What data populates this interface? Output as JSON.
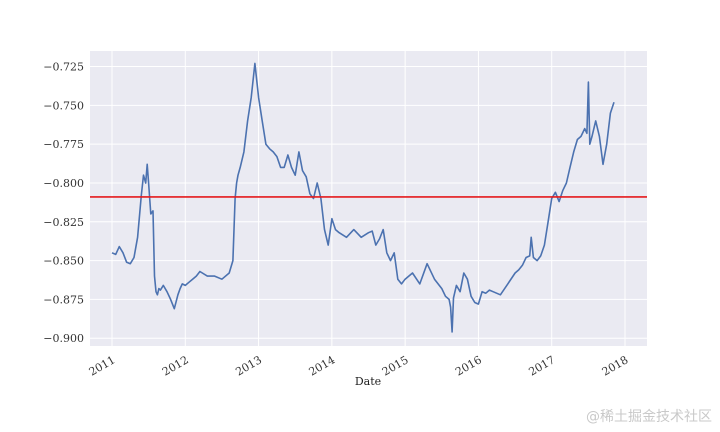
{
  "chart_data": {
    "type": "line",
    "title": "",
    "xlabel": "Date",
    "ylabel": "",
    "xlim": [
      2010.7,
      2018.3
    ],
    "ylim": [
      -0.905,
      -0.715
    ],
    "x_ticks": [
      2011,
      2012,
      2013,
      2014,
      2015,
      2016,
      2017,
      2018
    ],
    "x_tick_labels": [
      "2011",
      "2012",
      "2013",
      "2014",
      "2015",
      "2016",
      "2017",
      "2018"
    ],
    "y_ticks": [
      -0.725,
      -0.75,
      -0.775,
      -0.8,
      -0.825,
      -0.85,
      -0.875,
      -0.9
    ],
    "y_tick_labels": [
      "−0.725",
      "−0.750",
      "−0.775",
      "−0.800",
      "−0.825",
      "−0.850",
      "−0.875",
      "−0.900"
    ],
    "grid": true,
    "colors": {
      "series": "#4c72b0",
      "hline": "#e41a1c",
      "background": "#eaeaf2",
      "grid": "#ffffff"
    },
    "hline": {
      "y": -0.809
    },
    "series": [
      {
        "x": [
          2011.0,
          2011.05,
          2011.1,
          2011.15,
          2011.2,
          2011.25,
          2011.3,
          2011.35,
          2011.4,
          2011.43,
          2011.46,
          2011.48,
          2011.5,
          2011.53,
          2011.56,
          2011.58,
          2011.6,
          2011.62,
          2011.64,
          2011.66,
          2011.7,
          2011.75,
          2011.8,
          2011.85,
          2011.9,
          2011.93,
          2011.96,
          2012.0,
          2012.05,
          2012.1,
          2012.15,
          2012.2,
          2012.3,
          2012.4,
          2012.5,
          2012.6,
          2012.65,
          2012.68,
          2012.7,
          2012.72,
          2012.75,
          2012.8,
          2012.85,
          2012.9,
          2012.95,
          2013.0,
          2013.05,
          2013.1,
          2013.15,
          2013.2,
          2013.25,
          2013.3,
          2013.35,
          2013.4,
          2013.45,
          2013.5,
          2013.55,
          2013.6,
          2013.65,
          2013.7,
          2013.75,
          2013.8,
          2013.85,
          2013.9,
          2013.95,
          2014.0,
          2014.05,
          2014.1,
          2014.2,
          2014.3,
          2014.4,
          2014.5,
          2014.55,
          2014.6,
          2014.65,
          2014.7,
          2014.75,
          2014.8,
          2014.85,
          2014.9,
          2014.95,
          2015.0,
          2015.1,
          2015.2,
          2015.3,
          2015.4,
          2015.5,
          2015.55,
          2015.6,
          2015.62,
          2015.64,
          2015.66,
          2015.7,
          2015.75,
          2015.8,
          2015.85,
          2015.9,
          2015.95,
          2016.0,
          2016.05,
          2016.1,
          2016.15,
          2016.2,
          2016.3,
          2016.4,
          2016.5,
          2016.55,
          2016.6,
          2016.65,
          2016.7,
          2016.72,
          2016.75,
          2016.8,
          2016.85,
          2016.9,
          2016.95,
          2017.0,
          2017.05,
          2017.1,
          2017.15,
          2017.2,
          2017.25,
          2017.3,
          2017.35,
          2017.4,
          2017.45,
          2017.48,
          2017.5,
          2017.52,
          2017.55,
          2017.6,
          2017.65,
          2017.7,
          2017.75,
          2017.8,
          2017.85
        ],
        "values": [
          -0.845,
          -0.846,
          -0.841,
          -0.845,
          -0.851,
          -0.852,
          -0.848,
          -0.835,
          -0.808,
          -0.795,
          -0.8,
          -0.788,
          -0.8,
          -0.82,
          -0.818,
          -0.86,
          -0.87,
          -0.872,
          -0.868,
          -0.869,
          -0.866,
          -0.87,
          -0.875,
          -0.881,
          -0.872,
          -0.868,
          -0.865,
          -0.866,
          -0.864,
          -0.862,
          -0.86,
          -0.857,
          -0.86,
          -0.86,
          -0.862,
          -0.858,
          -0.85,
          -0.81,
          -0.8,
          -0.795,
          -0.79,
          -0.78,
          -0.76,
          -0.745,
          -0.723,
          -0.745,
          -0.76,
          -0.775,
          -0.778,
          -0.78,
          -0.783,
          -0.79,
          -0.79,
          -0.782,
          -0.79,
          -0.795,
          -0.78,
          -0.792,
          -0.796,
          -0.807,
          -0.81,
          -0.8,
          -0.81,
          -0.83,
          -0.84,
          -0.823,
          -0.83,
          -0.832,
          -0.835,
          -0.83,
          -0.835,
          -0.832,
          -0.831,
          -0.84,
          -0.836,
          -0.83,
          -0.845,
          -0.85,
          -0.845,
          -0.862,
          -0.865,
          -0.862,
          -0.858,
          -0.865,
          -0.852,
          -0.862,
          -0.868,
          -0.873,
          -0.875,
          -0.88,
          -0.896,
          -0.874,
          -0.866,
          -0.87,
          -0.858,
          -0.862,
          -0.873,
          -0.877,
          -0.878,
          -0.87,
          -0.871,
          -0.869,
          -0.87,
          -0.872,
          -0.865,
          -0.858,
          -0.856,
          -0.853,
          -0.848,
          -0.847,
          -0.835,
          -0.848,
          -0.85,
          -0.847,
          -0.84,
          -0.825,
          -0.81,
          -0.806,
          -0.812,
          -0.805,
          -0.8,
          -0.79,
          -0.78,
          -0.772,
          -0.77,
          -0.765,
          -0.768,
          -0.735,
          -0.775,
          -0.77,
          -0.76,
          -0.77,
          -0.788,
          -0.775,
          -0.755,
          -0.748
        ]
      }
    ]
  },
  "watermark": "@稀土掘金技术社区"
}
